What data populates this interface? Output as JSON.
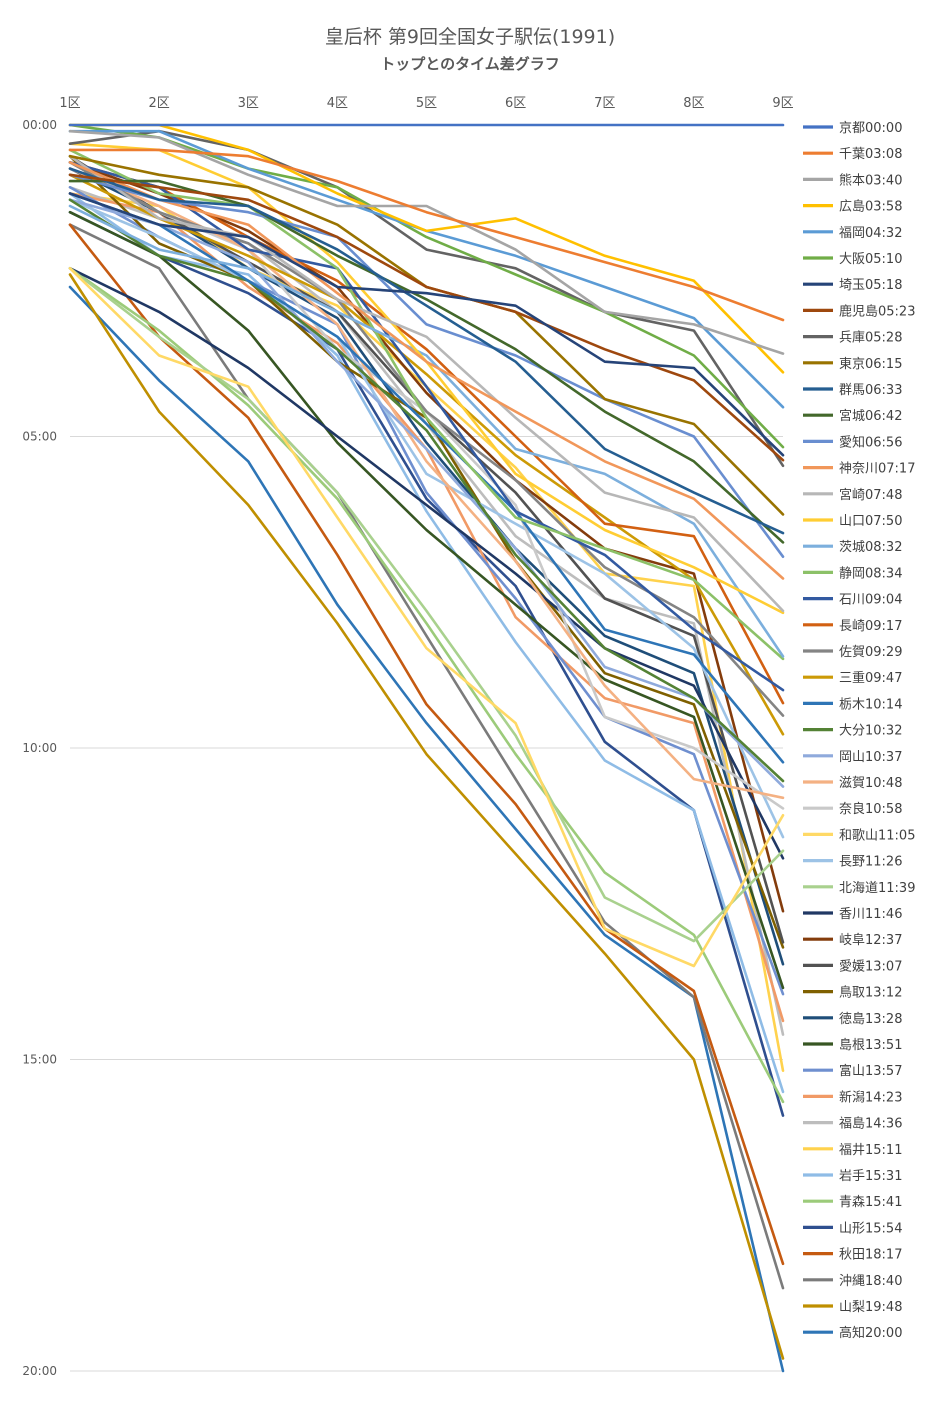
{
  "chart_data": {
    "type": "line",
    "title": "皇后杯 第9回全国女子駅伝(1991)",
    "subtitle": "トップとのタイム差グラフ",
    "categories": [
      "1区",
      "2区",
      "3区",
      "4区",
      "5区",
      "6区",
      "7区",
      "8区",
      "9区"
    ],
    "y_ticks": [
      "00:00",
      "05:00",
      "10:00",
      "15:00",
      "20:00"
    ],
    "ylim": [
      0,
      20
    ],
    "y_reversed": true,
    "y_unit": "minutes behind leader",
    "grid": true,
    "legend": "right",
    "series": [
      {
        "name": "京都00:00",
        "color": "#4472C4",
        "values": [
          0,
          0,
          0,
          0,
          0,
          0,
          0,
          0,
          0
        ]
      },
      {
        "name": "千葉03:08",
        "color": "#ED7D31",
        "values": [
          0.4,
          0.4,
          0.5,
          0.9,
          1.4,
          1.8,
          2.2,
          2.6,
          3.13
        ]
      },
      {
        "name": "熊本03:40",
        "color": "#A5A5A5",
        "values": [
          0.1,
          0.2,
          0.8,
          1.3,
          1.3,
          2.0,
          3.0,
          3.2,
          3.67
        ]
      },
      {
        "name": "広島03:58",
        "color": "#FFC000",
        "values": [
          0.0,
          0.0,
          0.4,
          1.1,
          1.7,
          1.5,
          2.1,
          2.5,
          3.97
        ]
      },
      {
        "name": "福岡04:32",
        "color": "#5B9BD5",
        "values": [
          0.1,
          0.1,
          0.7,
          1.2,
          1.7,
          2.1,
          2.6,
          3.1,
          4.53
        ]
      },
      {
        "name": "大阪05:10",
        "color": "#70AD47",
        "values": [
          0.0,
          0.2,
          0.7,
          1.0,
          1.8,
          2.4,
          3.0,
          3.7,
          5.17
        ]
      },
      {
        "name": "埼玉05:18",
        "color": "#264478",
        "values": [
          1.1,
          1.6,
          1.8,
          2.6,
          2.7,
          2.9,
          3.8,
          3.9,
          5.3
        ]
      },
      {
        "name": "鹿児島05:23",
        "color": "#9E480E",
        "values": [
          0.8,
          1.0,
          1.2,
          1.8,
          2.6,
          3.0,
          3.6,
          4.1,
          5.38
        ]
      },
      {
        "name": "兵庫05:28",
        "color": "#636363",
        "values": [
          0.3,
          0.1,
          0.4,
          1.0,
          2.0,
          2.3,
          3.0,
          3.3,
          5.47
        ]
      },
      {
        "name": "東京06:15",
        "color": "#997300",
        "values": [
          0.5,
          0.8,
          1.0,
          1.6,
          2.6,
          3.0,
          4.4,
          4.8,
          6.25
        ]
      },
      {
        "name": "群馬06:33",
        "color": "#255E91",
        "values": [
          0.7,
          1.2,
          1.3,
          2.0,
          2.9,
          3.8,
          5.2,
          5.9,
          6.55
        ]
      },
      {
        "name": "宮城06:42",
        "color": "#43682B",
        "values": [
          0.9,
          0.9,
          1.3,
          2.1,
          2.8,
          3.6,
          4.6,
          5.4,
          6.7
        ]
      },
      {
        "name": "愛知06:56",
        "color": "#698ED0",
        "values": [
          0.8,
          1.2,
          1.4,
          1.8,
          3.2,
          3.7,
          4.4,
          5.0,
          6.93
        ]
      },
      {
        "name": "神奈川07:17",
        "color": "#F1975A",
        "values": [
          0.6,
          1.2,
          1.6,
          2.7,
          3.8,
          4.6,
          5.4,
          6.0,
          7.28
        ]
      },
      {
        "name": "宮崎07:48",
        "color": "#B7B7B7",
        "values": [
          0.5,
          1.5,
          1.8,
          2.8,
          3.4,
          4.7,
          5.9,
          6.3,
          7.8
        ]
      },
      {
        "name": "山口07:50",
        "color": "#FFCD33",
        "values": [
          0.3,
          0.4,
          1.0,
          2.2,
          3.8,
          5.6,
          6.5,
          7.1,
          7.83
        ]
      },
      {
        "name": "茨城08:32",
        "color": "#7CAFDD",
        "values": [
          1.3,
          2.0,
          2.3,
          3.0,
          3.7,
          5.2,
          5.6,
          6.4,
          8.53
        ]
      },
      {
        "name": "静岡08:34",
        "color": "#8CC168",
        "values": [
          0.4,
          1.1,
          1.3,
          2.3,
          4.7,
          6.3,
          6.8,
          7.3,
          8.57
        ]
      },
      {
        "name": "石川09:04",
        "color": "#335AA1",
        "values": [
          0.6,
          1.0,
          2.0,
          2.3,
          4.2,
          6.2,
          6.9,
          8.1,
          9.07
        ]
      },
      {
        "name": "長崎09:17",
        "color": "#D26012",
        "values": [
          0.6,
          1.0,
          1.8,
          2.5,
          3.6,
          5.0,
          6.4,
          6.6,
          9.28
        ]
      },
      {
        "name": "佐賀09:29",
        "color": "#848484",
        "values": [
          0.6,
          1.4,
          1.9,
          2.8,
          4.6,
          5.7,
          7.1,
          7.9,
          9.48
        ]
      },
      {
        "name": "三重09:47",
        "color": "#CC9A06",
        "values": [
          0.8,
          1.5,
          2.1,
          2.8,
          4.0,
          5.3,
          6.3,
          7.3,
          9.78
        ]
      },
      {
        "name": "栃木10:14",
        "color": "#2E75B6",
        "values": [
          1.1,
          1.6,
          2.5,
          3.4,
          4.8,
          6.2,
          8.1,
          8.5,
          10.23
        ]
      },
      {
        "name": "大分10:32",
        "color": "#548235",
        "values": [
          1.2,
          2.1,
          2.5,
          3.6,
          4.9,
          6.9,
          8.4,
          9.2,
          10.53
        ]
      },
      {
        "name": "岡山10:37",
        "color": "#8FAADC",
        "values": [
          1.2,
          1.6,
          2.2,
          3.8,
          5.2,
          6.8,
          8.7,
          9.2,
          10.62
        ]
      },
      {
        "name": "滋賀10:48",
        "color": "#F4B183",
        "values": [
          0.7,
          1.3,
          2.0,
          3.2,
          5.4,
          7.0,
          9.0,
          10.5,
          10.8
        ]
      },
      {
        "name": "奈良10:58",
        "color": "#C9C9C9",
        "values": [
          0.6,
          1.4,
          2.0,
          3.6,
          4.6,
          6.1,
          9.5,
          10.0,
          10.97
        ]
      },
      {
        "name": "和歌山11:05",
        "color": "#FFD966",
        "values": [
          2.3,
          3.7,
          4.2,
          6.3,
          8.4,
          9.6,
          12.9,
          13.5,
          11.08
        ]
      },
      {
        "name": "長野11:26",
        "color": "#9DC3E6",
        "values": [
          1.2,
          1.8,
          2.5,
          3.4,
          5.6,
          6.4,
          7.2,
          8.4,
          11.43
        ]
      },
      {
        "name": "北海道11:39",
        "color": "#A9D18E",
        "values": [
          2.3,
          3.4,
          4.4,
          5.9,
          7.8,
          9.8,
          12.4,
          13.1,
          11.65
        ]
      },
      {
        "name": "香川11:46",
        "color": "#203864",
        "values": [
          2.3,
          3.0,
          3.9,
          5.0,
          6.1,
          7.2,
          8.4,
          9.0,
          11.77
        ]
      },
      {
        "name": "岐阜12:37",
        "color": "#843C0C",
        "values": [
          0.6,
          1.1,
          1.7,
          2.6,
          4.3,
          5.7,
          6.8,
          7.2,
          12.62
        ]
      },
      {
        "name": "愛媛13:07",
        "color": "#525252",
        "values": [
          0.5,
          1.4,
          2.2,
          3.0,
          4.6,
          5.9,
          7.6,
          8.2,
          13.12
        ]
      },
      {
        "name": "鳥取13:12",
        "color": "#7F6000",
        "values": [
          0.5,
          1.9,
          2.5,
          3.8,
          4.7,
          7.0,
          8.8,
          9.3,
          13.2
        ]
      },
      {
        "name": "徳島13:28",
        "color": "#1F4E79",
        "values": [
          0.7,
          1.4,
          2.3,
          3.1,
          5.1,
          6.8,
          8.2,
          8.8,
          13.47
        ]
      },
      {
        "name": "島根13:51",
        "color": "#375623",
        "values": [
          1.4,
          2.1,
          3.3,
          5.1,
          6.5,
          7.7,
          8.9,
          9.5,
          13.85
        ]
      },
      {
        "name": "富山13:57",
        "color": "#6F8FCF",
        "values": [
          1.0,
          1.8,
          2.5,
          3.2,
          5.9,
          7.6,
          9.5,
          10.1,
          13.95
        ]
      },
      {
        "name": "新潟14:23",
        "color": "#F19A66",
        "values": [
          1.1,
          1.4,
          2.6,
          3.5,
          5.2,
          7.9,
          9.2,
          9.6,
          14.38
        ]
      },
      {
        "name": "福島14:36",
        "color": "#BDBDBD",
        "values": [
          1.0,
          1.5,
          1.9,
          3.0,
          4.8,
          6.6,
          7.6,
          8.0,
          14.6
        ]
      },
      {
        "name": "福井15:11",
        "color": "#FFD24D",
        "values": [
          1.1,
          1.3,
          2.3,
          2.9,
          4.2,
          5.5,
          7.2,
          7.4,
          15.18
        ]
      },
      {
        "name": "岩手15:31",
        "color": "#8FBCE6",
        "values": [
          1.1,
          2.1,
          2.4,
          3.7,
          6.2,
          8.3,
          10.2,
          11.0,
          15.52
        ]
      },
      {
        "name": "青森15:41",
        "color": "#9CCB7A",
        "values": [
          2.3,
          3.3,
          4.5,
          6.0,
          8.0,
          10.1,
          12.0,
          13.0,
          15.68
        ]
      },
      {
        "name": "山形15:54",
        "color": "#2F4F8F",
        "values": [
          1.4,
          2.1,
          2.7,
          3.6,
          6.0,
          7.4,
          9.9,
          11.0,
          15.9
        ]
      },
      {
        "name": "秋田18:17",
        "color": "#C55A11",
        "values": [
          1.6,
          3.4,
          4.7,
          6.9,
          9.3,
          10.9,
          12.9,
          13.9,
          18.28
        ]
      },
      {
        "name": "沖縄18:40",
        "color": "#7B7B7B",
        "values": [
          1.6,
          2.3,
          4.4,
          5.9,
          8.2,
          10.5,
          12.8,
          14.0,
          18.67
        ]
      },
      {
        "name": "山梨19:48",
        "color": "#BF8F00",
        "values": [
          2.4,
          4.6,
          6.1,
          8.0,
          10.1,
          11.7,
          13.3,
          15.0,
          19.8
        ]
      },
      {
        "name": "高知20:00",
        "color": "#2E75B6",
        "values": [
          2.6,
          4.1,
          5.4,
          7.7,
          9.6,
          11.3,
          13.0,
          14.0,
          20.0
        ]
      }
    ]
  }
}
